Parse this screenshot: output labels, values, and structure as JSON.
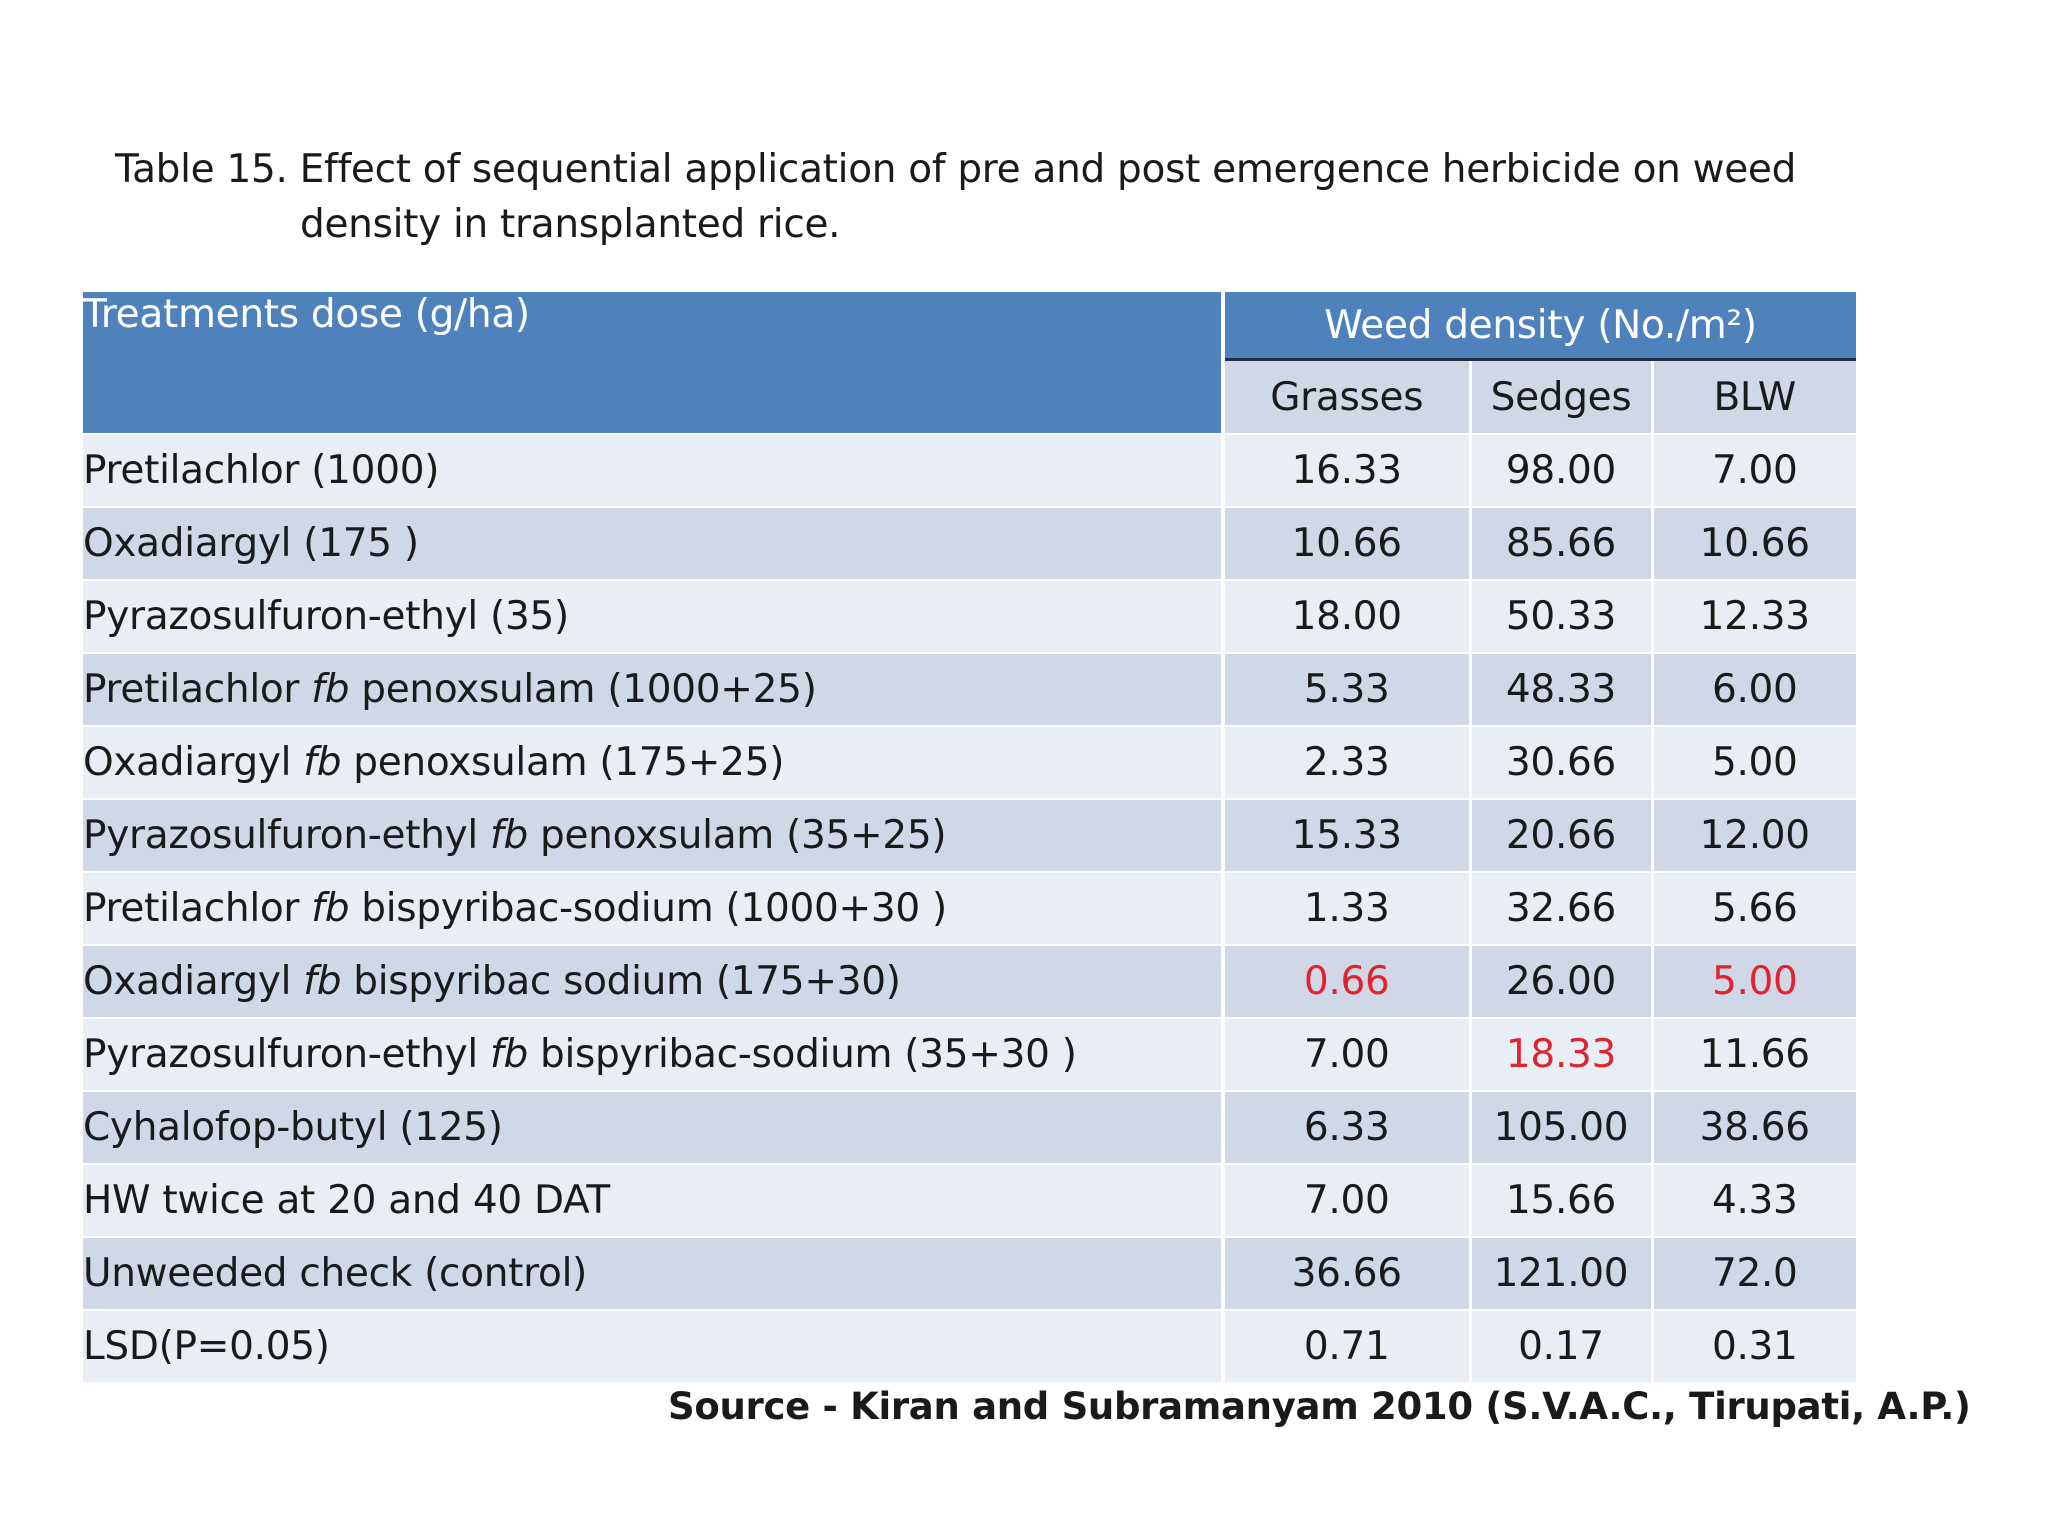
{
  "caption": {
    "line1": "Table 15.  Effect of sequential application of pre and post emergence herbicide on  weed",
    "line2": "density in transplanted rice."
  },
  "header": {
    "treatments": "Treatments dose (g/ha)",
    "weed_density": "Weed density (No./m²)",
    "grasses": "Grasses",
    "sedges": "Sedges",
    "blw": "BLW"
  },
  "rows": [
    {
      "pre": "Pretilachlor  (1000)",
      "fb": "",
      "post": "",
      "grasses": "16.33",
      "sedges": "98.00",
      "blw": "7.00"
    },
    {
      "pre": "Oxadiargyl  (175 )",
      "fb": "",
      "post": "",
      "grasses": "10.66",
      "sedges": "85.66",
      "blw": "10.66"
    },
    {
      "pre": "Pyrazosulfuron-ethyl (35)",
      "fb": "",
      "post": "",
      "grasses": "18.00",
      "sedges": "50.33",
      "blw": "12.33"
    },
    {
      "pre": "Pretilachlor  ",
      "fb": "fb",
      "post": " penoxsulam (1000+25)",
      "grasses": "5.33",
      "sedges": "48.33",
      "blw": "6.00"
    },
    {
      "pre": "Oxadiargyl  ",
      "fb": "fb",
      "post": " penoxsulam  (175+25)",
      "grasses": "2.33",
      "sedges": "30.66",
      "blw": "5.00"
    },
    {
      "pre": "Pyrazosulfuron-ethyl  ",
      "fb": "fb",
      "post": " penoxsulam (35+25)",
      "grasses": "15.33",
      "sedges": "20.66",
      "blw": "12.00"
    },
    {
      "pre": "Pretilachlor  ",
      "fb": "fb",
      "post": " bispyribac-sodium (1000+30 )",
      "grasses": "1.33",
      "sedges": "32.66",
      "blw": "5.66"
    },
    {
      "pre": "Oxadiargyl  ",
      "fb": "fb",
      "post": " bispyribac sodium (175+30)",
      "grasses": "0.66",
      "sedges": "26.00",
      "blw": "5.00"
    },
    {
      "pre": "Pyrazosulfuron-ethyl ",
      "fb": "fb",
      "post": " bispyribac-sodium (35+30 )",
      "grasses": "7.00",
      "sedges": "18.33",
      "blw": "11.66"
    },
    {
      "pre": "Cyhalofop-butyl (125)",
      "fb": "",
      "post": "",
      "grasses": "6.33",
      "sedges": "105.00",
      "blw": "38.66"
    },
    {
      "pre": "HW twice at 20 and 40 DAT",
      "fb": "",
      "post": "",
      "grasses": "7.00",
      "sedges": "15.66",
      "blw": "4.33"
    },
    {
      "pre": "Unweeded check (control)",
      "fb": "",
      "post": "",
      "grasses": "36.66",
      "sedges": "121.00",
      "blw": "72.0"
    },
    {
      "pre": "LSD(P=0.05)",
      "fb": "",
      "post": "",
      "grasses": "0.71",
      "sedges": "0.17",
      "blw": "0.31"
    }
  ],
  "source": "Source  - Kiran and Subramanyam 2010 (S.V.A.C., Tirupati, A.P.)",
  "colors": {
    "header_blue": "#4f81bd",
    "band_dark": "#d0d8e8",
    "band_light": "#e9edf4",
    "highlight_red": "#e0242f"
  }
}
